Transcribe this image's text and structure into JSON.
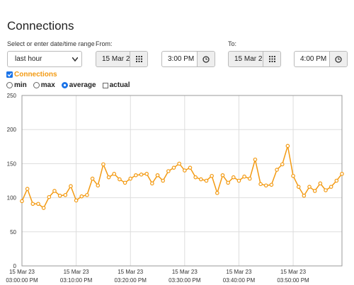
{
  "header": {
    "title": "Connections"
  },
  "form": {
    "range_label": "Select or enter date/time range",
    "range_value": "last hour",
    "from_label": "From:",
    "from_date": "15 Mar 2",
    "from_time": "3:00 PM",
    "to_label": "To:",
    "to_date": "15 Mar 2",
    "to_time": "4:00 PM",
    "options": [
      "min",
      "max",
      "average"
    ],
    "selected_option": 2,
    "actual_label": "actual"
  },
  "chart_data": {
    "type": "line",
    "x": [
      0,
      1,
      2,
      3,
      4,
      5,
      6,
      7,
      8,
      9,
      10,
      11,
      12,
      13,
      14,
      15,
      16,
      17,
      18,
      19,
      20,
      21,
      22,
      23,
      24,
      25,
      26,
      27,
      28,
      29,
      30,
      31,
      32,
      33,
      34,
      35,
      36,
      37,
      38,
      39,
      40,
      41,
      42,
      43,
      44,
      45,
      46,
      47,
      48,
      49,
      50,
      51,
      52,
      53,
      54,
      55,
      56,
      57,
      58,
      59
    ],
    "series": [
      {
        "name": "Connections",
        "color": "#f39a12",
        "values": [
          95,
          113,
          91,
          91,
          85,
          101,
          110,
          103,
          104,
          117,
          96,
          102,
          104,
          128,
          118,
          149,
          130,
          135,
          127,
          122,
          128,
          133,
          134,
          135,
          121,
          133,
          125,
          139,
          144,
          150,
          140,
          144,
          130,
          127,
          125,
          132,
          107,
          133,
          122,
          130,
          125,
          131,
          128,
          156,
          120,
          118,
          119,
          141,
          149,
          176,
          132,
          116,
          103,
          116,
          110,
          121,
          111,
          116,
          125,
          135
        ]
      }
    ],
    "xlim": [
      0,
      59
    ],
    "xticks": [
      {
        "value": 0,
        "label": [
          "15 Mar 23",
          "03:00:00 PM"
        ]
      },
      {
        "value": 10,
        "label": [
          "15 Mar 23",
          "03:10:00 PM"
        ]
      },
      {
        "value": 20,
        "label": [
          "15 Mar 23",
          "03:20:00 PM"
        ]
      },
      {
        "value": 30,
        "label": [
          "15 Mar 23",
          "03:30:00 PM"
        ]
      },
      {
        "value": 40,
        "label": [
          "15 Mar 23",
          "03:40:00 PM"
        ]
      },
      {
        "value": 50,
        "label": [
          "15 Mar 23",
          "03:50:00 PM"
        ]
      }
    ],
    "ylim": [
      0,
      250
    ],
    "yticks": [
      0,
      50,
      100,
      150,
      200,
      250
    ],
    "grid": true
  }
}
